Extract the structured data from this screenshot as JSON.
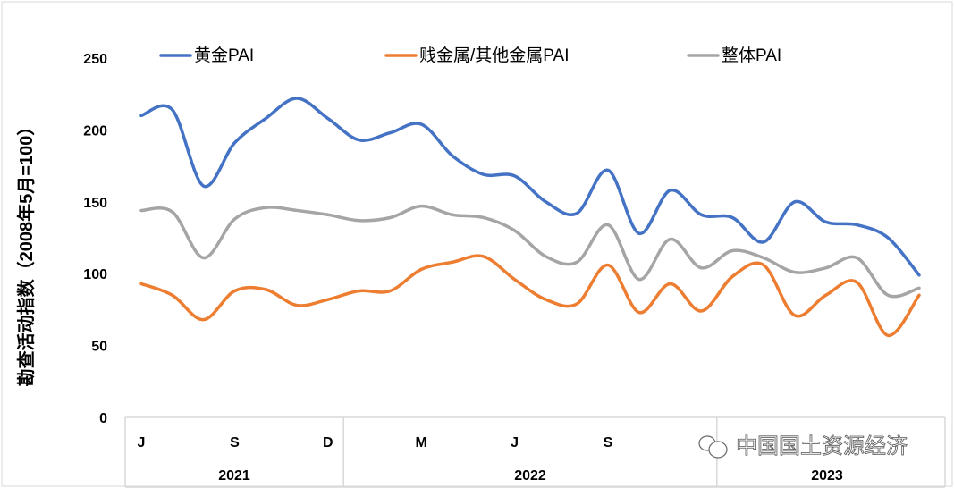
{
  "chart_data": {
    "type": "line",
    "title": "",
    "xlabel": "",
    "ylabel": "勘查活动指数（2008年5月=100）",
    "ylim": [
      0,
      250
    ],
    "yticks": [
      0,
      50,
      100,
      150,
      200,
      250
    ],
    "grid": false,
    "legend_position": "top",
    "x": [
      "2021-06",
      "2021-07",
      "2021-08",
      "2021-09",
      "2021-10",
      "2021-11",
      "2021-12",
      "2022-01",
      "2022-02",
      "2022-03",
      "2022-04",
      "2022-05",
      "2022-06",
      "2022-07",
      "2022-08",
      "2022-09",
      "2022-10",
      "2022-11",
      "2022-12",
      "2023-01",
      "2023-02",
      "2023-03",
      "2023-04",
      "2023-05",
      "2023-06",
      "2023-07"
    ],
    "x_tick_labels": [
      {
        "label": "J",
        "x": "2021-06"
      },
      {
        "label": "S",
        "x": "2021-09"
      },
      {
        "label": "D",
        "x": "2021-12"
      },
      {
        "label": "M",
        "x": "2022-03"
      },
      {
        "label": "J",
        "x": "2022-06"
      },
      {
        "label": "S",
        "x": "2022-09"
      }
    ],
    "x_groups": [
      {
        "label": "2021",
        "from": "2021-06",
        "to": "2021-12"
      },
      {
        "label": "2022",
        "from": "2022-01",
        "to": "2022-12"
      },
      {
        "label": "2023",
        "from": "2023-01",
        "to": "2023-07"
      }
    ],
    "series": [
      {
        "name": "黄金PAI",
        "color": "#4472C4",
        "values": [
          210,
          214,
          161,
          191,
          208,
          222,
          208,
          193,
          198,
          204,
          182,
          169,
          168,
          150,
          142,
          172,
          128,
          158,
          141,
          139,
          122,
          150,
          136,
          134,
          125,
          99
        ]
      },
      {
        "name": "贱金属/其他金属PAI",
        "color": "#ED7D31",
        "values": [
          93,
          85,
          68,
          88,
          89,
          78,
          82,
          88,
          88,
          103,
          108,
          112,
          96,
          82,
          79,
          106,
          73,
          93,
          74,
          98,
          106,
          71,
          85,
          94,
          57,
          85
        ]
      },
      {
        "name": "整体PAI",
        "color": "#A5A5A5",
        "values": [
          144,
          143,
          111,
          138,
          146,
          144,
          141,
          137,
          139,
          147,
          141,
          139,
          130,
          112,
          108,
          134,
          96,
          124,
          104,
          116,
          111,
          101,
          104,
          111,
          85,
          90
        ]
      }
    ]
  },
  "watermark": "中国国土资源经济"
}
